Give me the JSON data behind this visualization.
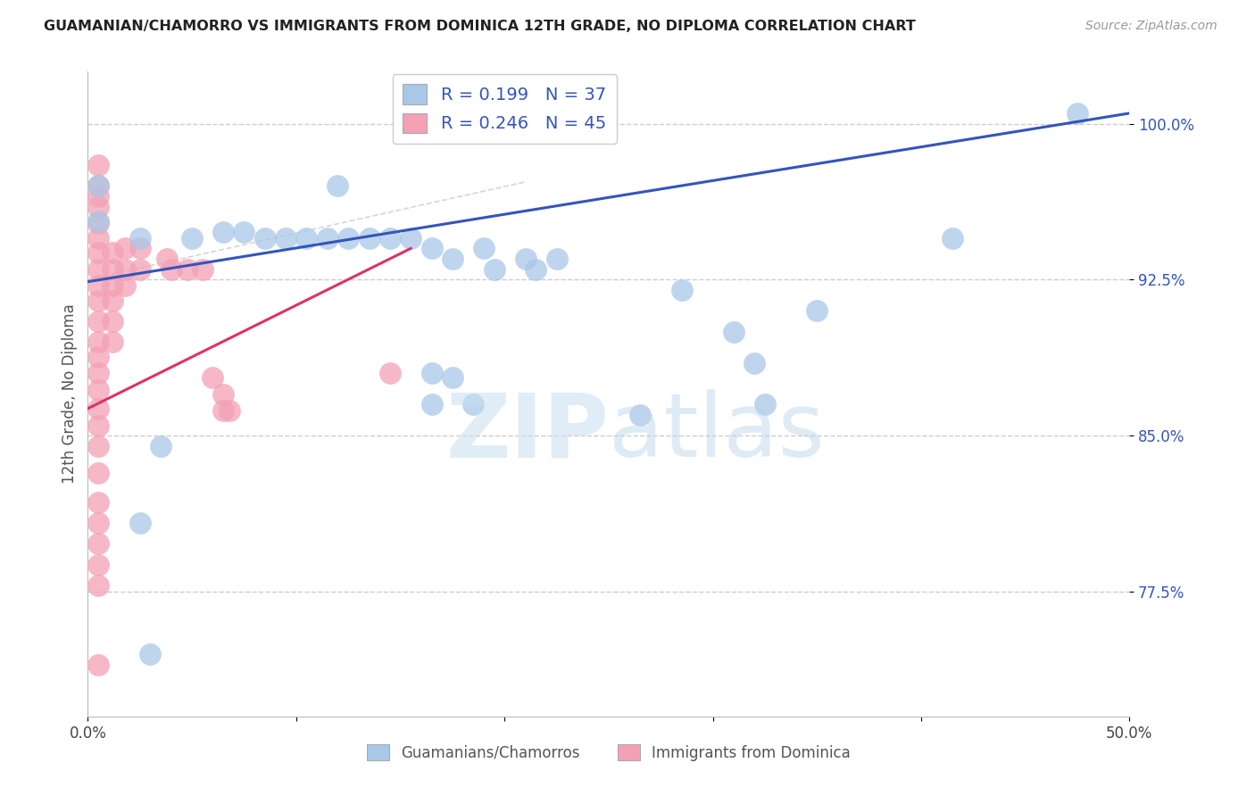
{
  "title": "GUAMANIAN/CHAMORRO VS IMMIGRANTS FROM DOMINICA 12TH GRADE, NO DIPLOMA CORRELATION CHART",
  "source": "Source: ZipAtlas.com",
  "ylabel": "12th Grade, No Diploma",
  "xlim": [
    0.0,
    0.5
  ],
  "ylim": [
    0.715,
    1.025
  ],
  "ytick_positions": [
    0.775,
    0.85,
    0.925,
    1.0
  ],
  "ytick_labels": [
    "77.5%",
    "85.0%",
    "92.5%",
    "100.0%"
  ],
  "blue_color": "#a8c8e8",
  "pink_color": "#f4a0b5",
  "blue_line_color": "#3355bb",
  "pink_line_color": "#dd3366",
  "R_blue": 0.199,
  "N_blue": 37,
  "R_pink": 0.246,
  "N_pink": 45,
  "legend_label_blue": "Guamanians/Chamorros",
  "legend_label_pink": "Immigrants from Dominica",
  "blue_line_x0": 0.0,
  "blue_line_y0": 0.924,
  "blue_line_x1": 0.5,
  "blue_line_y1": 1.005,
  "pink_line_x0": 0.0,
  "pink_line_y0": 0.863,
  "pink_line_x1": 0.155,
  "pink_line_y1": 0.94,
  "ref_line_x0": 0.0,
  "ref_line_y0": 0.925,
  "ref_line_x1": 0.21,
  "ref_line_y1": 0.972,
  "blue_scatter": [
    [
      0.005,
      0.97
    ],
    [
      0.12,
      0.97
    ],
    [
      0.005,
      0.953
    ],
    [
      0.025,
      0.945
    ],
    [
      0.05,
      0.945
    ],
    [
      0.065,
      0.948
    ],
    [
      0.075,
      0.948
    ],
    [
      0.085,
      0.945
    ],
    [
      0.095,
      0.945
    ],
    [
      0.105,
      0.945
    ],
    [
      0.115,
      0.945
    ],
    [
      0.125,
      0.945
    ],
    [
      0.135,
      0.945
    ],
    [
      0.145,
      0.945
    ],
    [
      0.155,
      0.945
    ],
    [
      0.165,
      0.94
    ],
    [
      0.175,
      0.935
    ],
    [
      0.19,
      0.94
    ],
    [
      0.21,
      0.935
    ],
    [
      0.225,
      0.935
    ],
    [
      0.195,
      0.93
    ],
    [
      0.215,
      0.93
    ],
    [
      0.285,
      0.92
    ],
    [
      0.31,
      0.9
    ],
    [
      0.32,
      0.885
    ],
    [
      0.165,
      0.88
    ],
    [
      0.175,
      0.878
    ],
    [
      0.165,
      0.865
    ],
    [
      0.185,
      0.865
    ],
    [
      0.325,
      0.865
    ],
    [
      0.265,
      0.86
    ],
    [
      0.035,
      0.845
    ],
    [
      0.025,
      0.808
    ],
    [
      0.03,
      0.745
    ],
    [
      0.415,
      0.945
    ],
    [
      0.475,
      1.005
    ],
    [
      0.35,
      0.91
    ]
  ],
  "pink_scatter": [
    [
      0.005,
      0.98
    ],
    [
      0.005,
      0.97
    ],
    [
      0.005,
      0.965
    ],
    [
      0.005,
      0.96
    ],
    [
      0.005,
      0.952
    ],
    [
      0.005,
      0.945
    ],
    [
      0.005,
      0.938
    ],
    [
      0.005,
      0.93
    ],
    [
      0.005,
      0.922
    ],
    [
      0.005,
      0.915
    ],
    [
      0.005,
      0.905
    ],
    [
      0.005,
      0.895
    ],
    [
      0.005,
      0.888
    ],
    [
      0.005,
      0.88
    ],
    [
      0.005,
      0.872
    ],
    [
      0.005,
      0.863
    ],
    [
      0.005,
      0.855
    ],
    [
      0.005,
      0.845
    ],
    [
      0.005,
      0.832
    ],
    [
      0.005,
      0.818
    ],
    [
      0.005,
      0.808
    ],
    [
      0.005,
      0.798
    ],
    [
      0.005,
      0.788
    ],
    [
      0.005,
      0.778
    ],
    [
      0.012,
      0.938
    ],
    [
      0.012,
      0.93
    ],
    [
      0.012,
      0.922
    ],
    [
      0.012,
      0.915
    ],
    [
      0.012,
      0.905
    ],
    [
      0.012,
      0.895
    ],
    [
      0.018,
      0.94
    ],
    [
      0.018,
      0.93
    ],
    [
      0.018,
      0.922
    ],
    [
      0.025,
      0.94
    ],
    [
      0.025,
      0.93
    ],
    [
      0.038,
      0.935
    ],
    [
      0.04,
      0.93
    ],
    [
      0.048,
      0.93
    ],
    [
      0.055,
      0.93
    ],
    [
      0.06,
      0.878
    ],
    [
      0.065,
      0.87
    ],
    [
      0.068,
      0.862
    ],
    [
      0.065,
      0.862
    ],
    [
      0.145,
      0.88
    ],
    [
      0.005,
      0.74
    ]
  ],
  "watermark_zip": "ZIP",
  "watermark_atlas": "atlas",
  "background_color": "#ffffff",
  "grid_color": "#cccccc"
}
